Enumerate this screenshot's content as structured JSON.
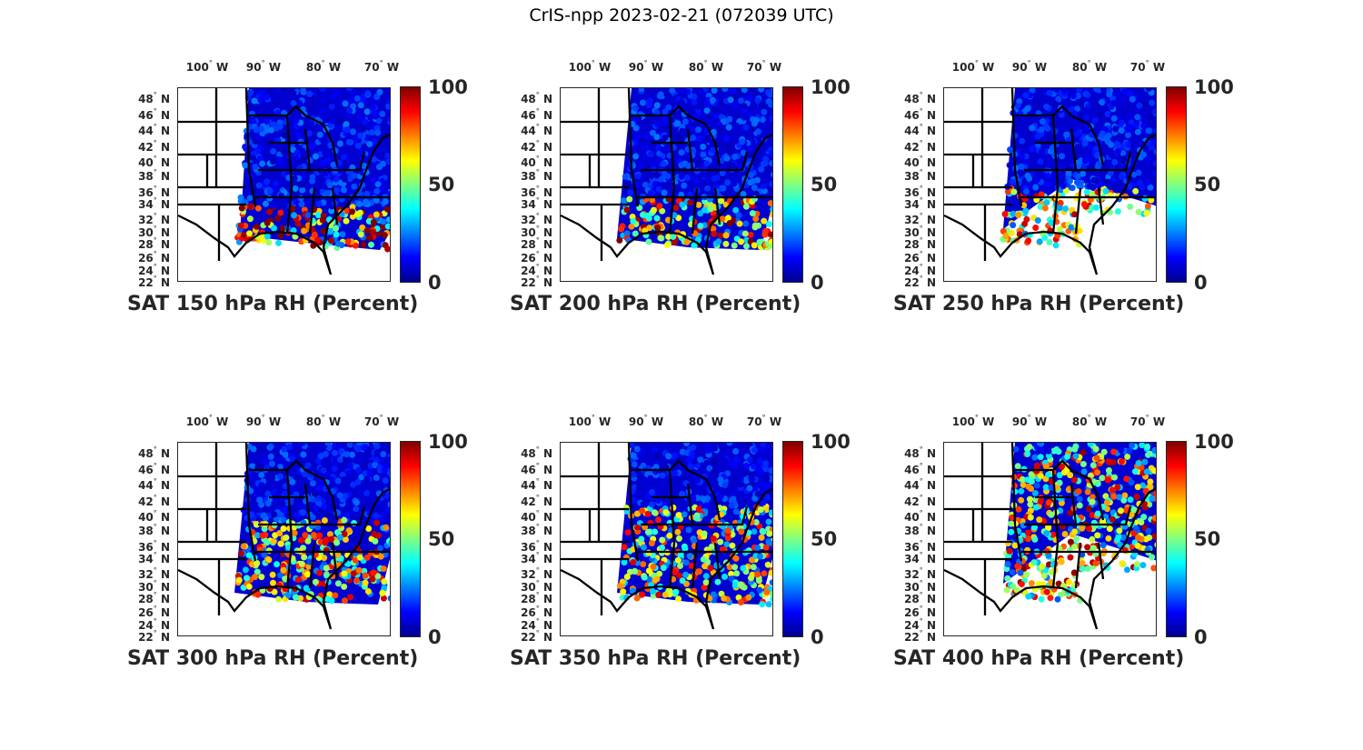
{
  "figure": {
    "title": "CrIS-npp 2023-02-21 (072039 UTC)"
  },
  "axes": {
    "lon_labels": [
      "100",
      "90",
      "80",
      "70"
    ],
    "lon_suffix": "W",
    "lat_labels": [
      "48",
      "46",
      "44",
      "42",
      "40",
      "38",
      "36",
      "34",
      "32",
      "30",
      "28",
      "26",
      "24",
      "22"
    ],
    "lat_suffix": "N",
    "degree_symbol": "°"
  },
  "colorbar": {
    "ticks": [
      "100",
      "50",
      "0"
    ],
    "range": [
      0,
      100
    ],
    "colormap": "jet"
  },
  "panels": [
    {
      "caption": "SAT 150 hPa RH (Percent)",
      "level_hpa": 150
    },
    {
      "caption": "SAT 200 hPa RH (Percent)",
      "level_hpa": 200
    },
    {
      "caption": "SAT 250 hPa RH (Percent)",
      "level_hpa": 250
    },
    {
      "caption": "SAT 300 hPa RH (Percent)",
      "level_hpa": 300
    },
    {
      "caption": "SAT 350 hPa RH (Percent)",
      "level_hpa": 350
    },
    {
      "caption": "SAT 400 hPa RH (Percent)",
      "level_hpa": 400
    }
  ]
}
